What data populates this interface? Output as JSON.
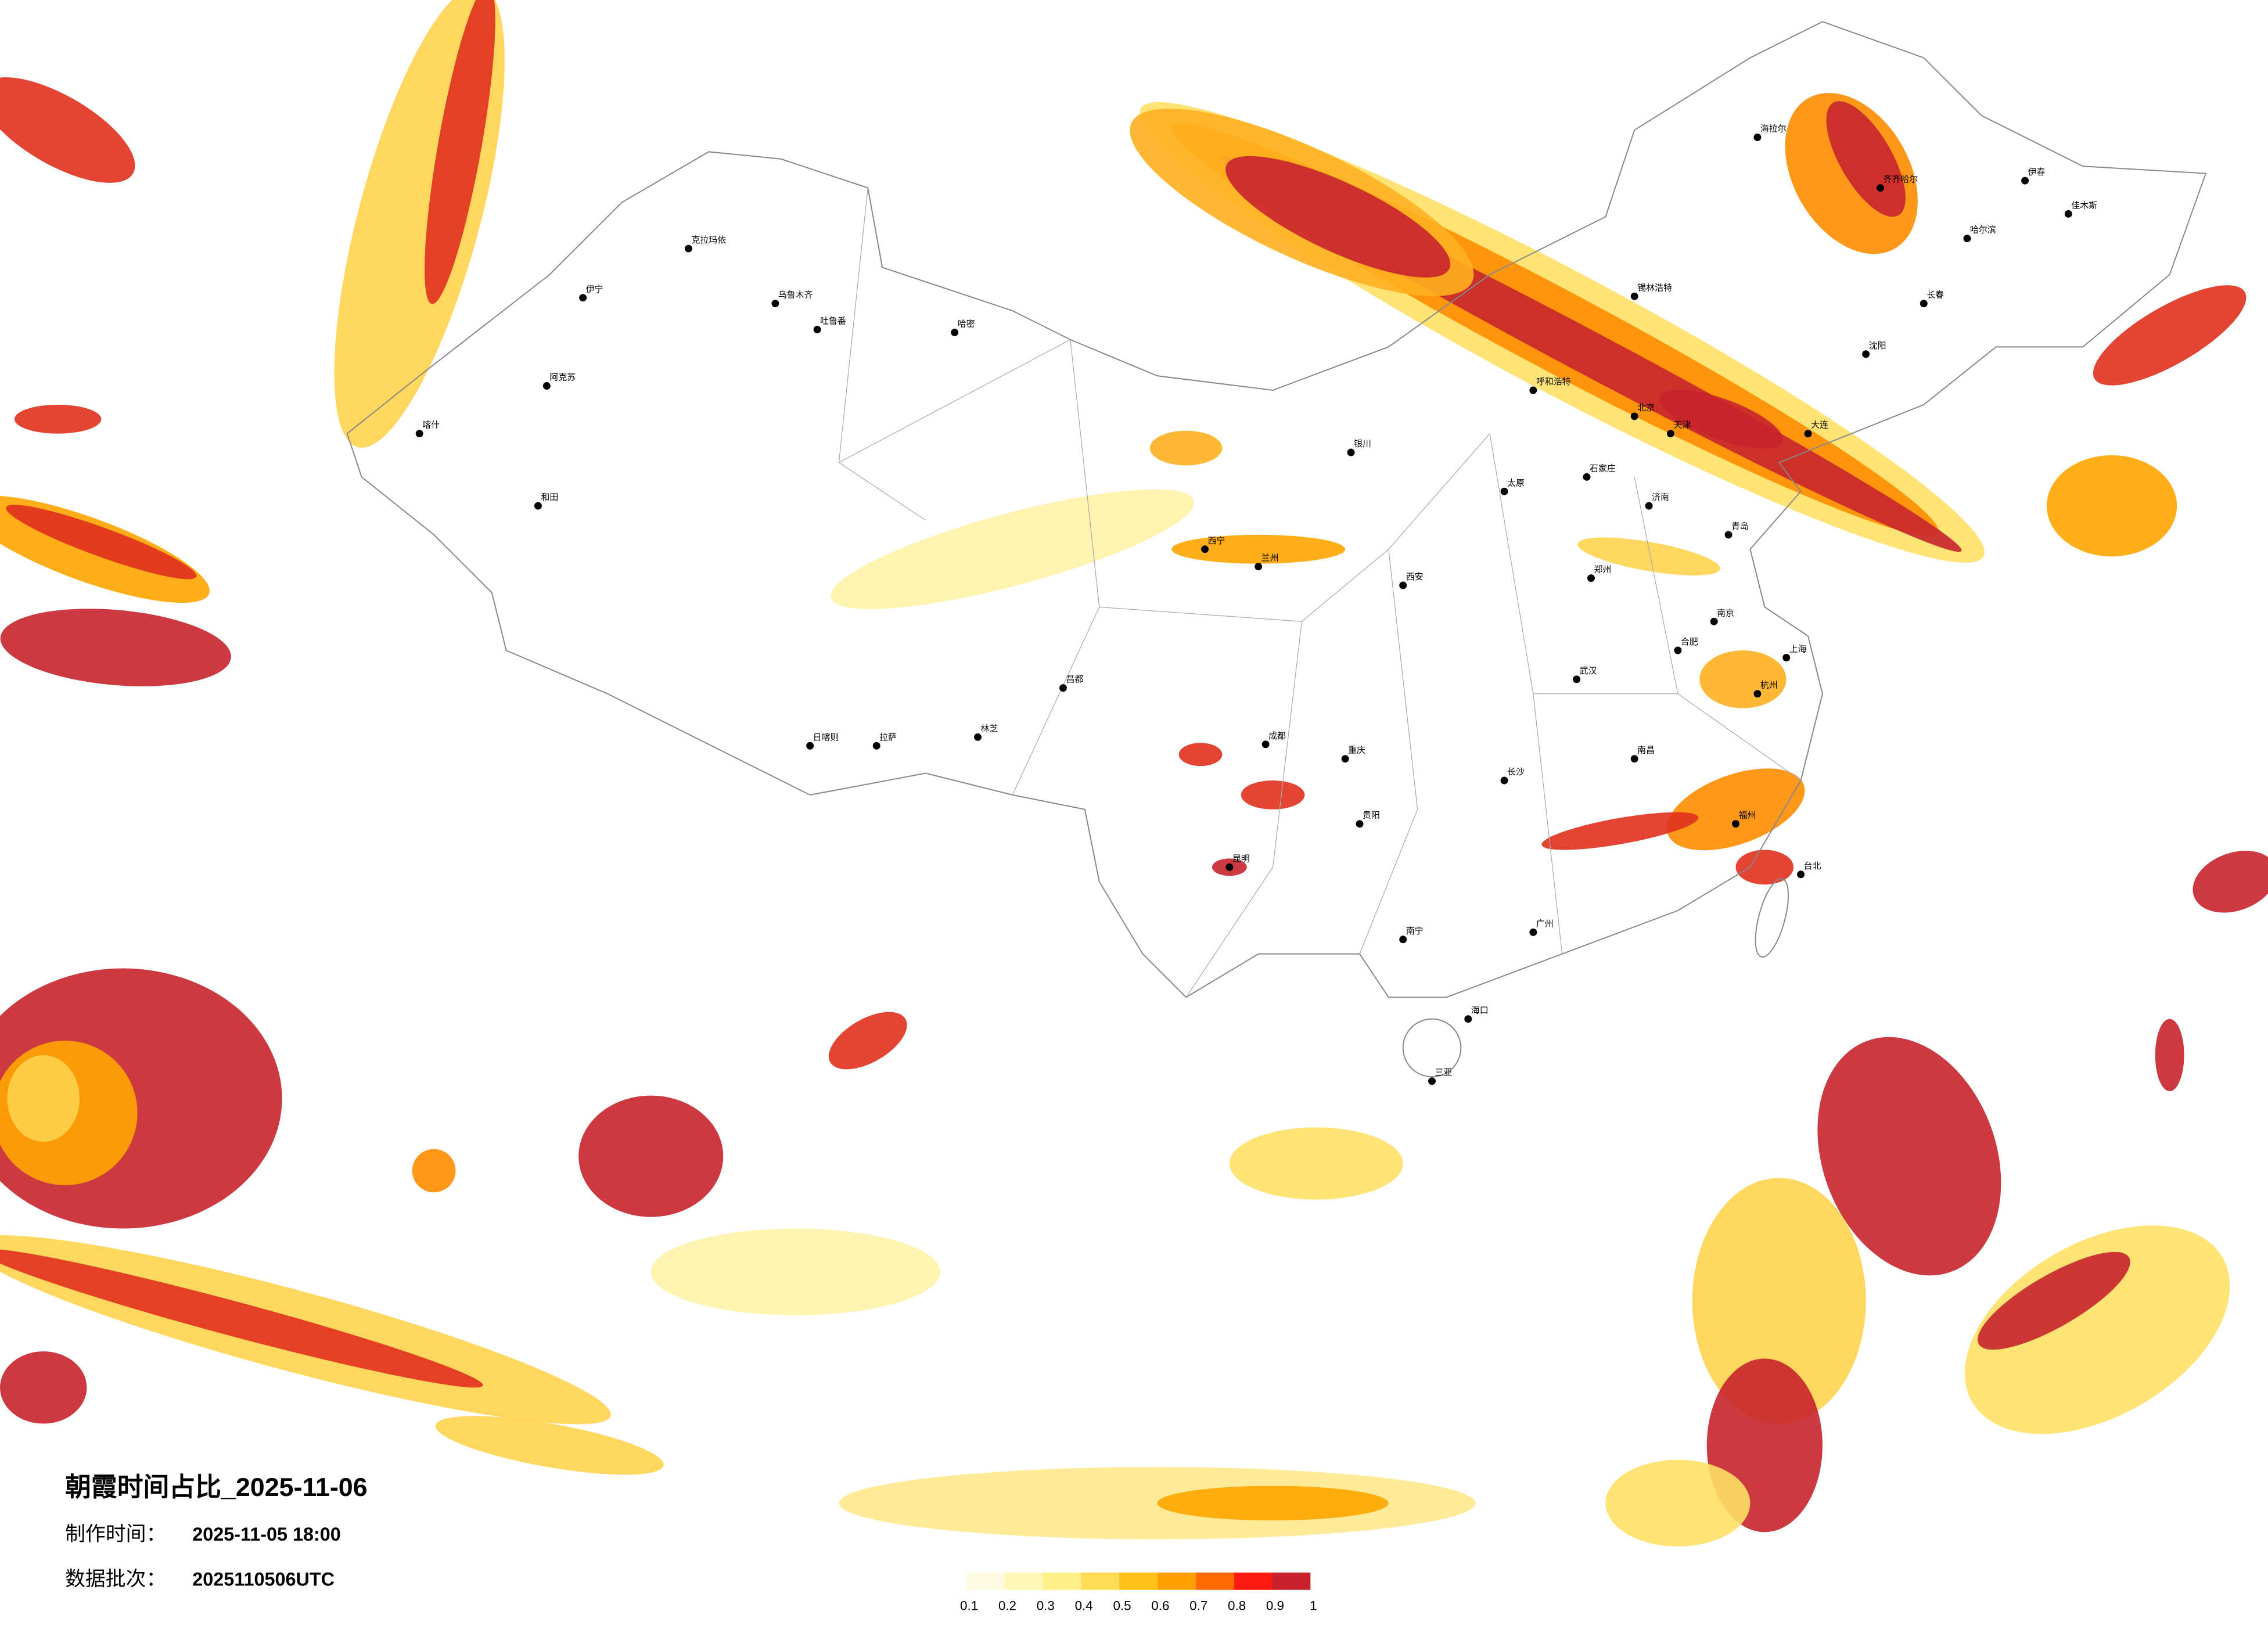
{
  "title": "朝霞时间占比_2025-11-06",
  "made_label": "制作时间：",
  "made_time": "2025-11-05 18:00",
  "batch_label": "数据批次：",
  "batch": "2025110506UTC",
  "legend": {
    "ticks": [
      0.1,
      0.2,
      0.3,
      0.4,
      0.5,
      0.6,
      0.7,
      0.8,
      0.9,
      1
    ],
    "colors": [
      "#fffbe0",
      "#fff6b8",
      "#fff08a",
      "#ffdc55",
      "#ffc01a",
      "#ffa000",
      "#ff6a00",
      "#ff1a10",
      "#c8232c"
    ]
  },
  "cities": [
    {
      "name": "乌鲁木齐"
    },
    {
      "name": "克拉玛依"
    },
    {
      "name": "伊宁"
    },
    {
      "name": "喀什"
    },
    {
      "name": "和田"
    },
    {
      "name": "阿克苏"
    },
    {
      "name": "哈密"
    },
    {
      "name": "吐鲁番"
    },
    {
      "name": "拉萨"
    },
    {
      "name": "日喀则"
    },
    {
      "name": "林芝"
    },
    {
      "name": "昌都"
    },
    {
      "name": "西宁"
    },
    {
      "name": "兰州"
    },
    {
      "name": "银川"
    },
    {
      "name": "呼和浩特"
    },
    {
      "name": "太原"
    },
    {
      "name": "石家庄"
    },
    {
      "name": "郑州"
    },
    {
      "name": "西安"
    },
    {
      "name": "成都"
    },
    {
      "name": "重庆"
    },
    {
      "name": "贵阳"
    },
    {
      "name": "昆明"
    },
    {
      "name": "南宁"
    },
    {
      "name": "广州"
    },
    {
      "name": "长沙"
    },
    {
      "name": "武汉"
    },
    {
      "name": "南昌"
    },
    {
      "name": "合肥"
    },
    {
      "name": "南京"
    },
    {
      "name": "上海"
    },
    {
      "name": "杭州"
    },
    {
      "name": "福州"
    },
    {
      "name": "台北"
    },
    {
      "name": "海口"
    },
    {
      "name": "三亚"
    },
    {
      "name": "哈尔滨"
    },
    {
      "name": "长春"
    },
    {
      "name": "沈阳"
    },
    {
      "name": "大连"
    },
    {
      "name": "天津"
    },
    {
      "name": "北京"
    },
    {
      "name": "济南"
    },
    {
      "name": "青岛"
    },
    {
      "name": "齐齐哈尔"
    },
    {
      "name": "海拉尔"
    },
    {
      "name": "伊春"
    },
    {
      "name": "佳木斯"
    },
    {
      "name": "锡林浩特"
    }
  ]
}
